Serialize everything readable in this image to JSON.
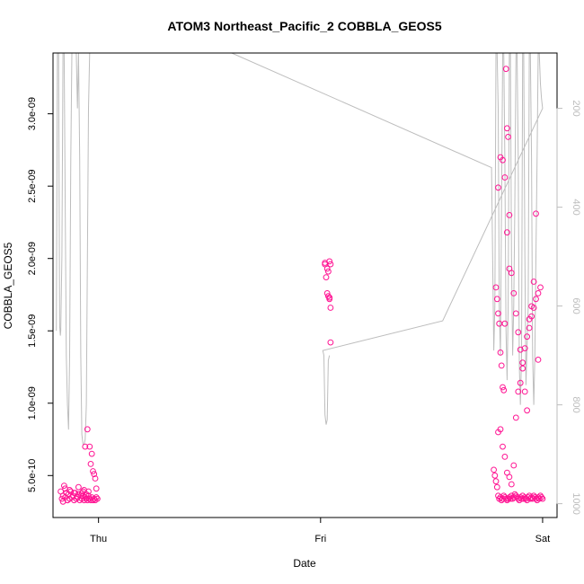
{
  "chart_data": {
    "type": "scatter",
    "title": "ATOM3 Northeast_Pacific_2 COBBLA_GEOS5",
    "xlabel": "Date",
    "ylabel": "COBBLA_GEOS5",
    "x_ticks": [
      {
        "label": "Thu",
        "value": 0.0
      },
      {
        "label": "Fri",
        "value": 1.0
      },
      {
        "label": "Sat",
        "value": 2.0
      }
    ],
    "xlim": [
      -0.205,
      2.065
    ],
    "ylim": [
      2.1e-10,
      3.42e-09
    ],
    "y_ticks": [
      {
        "label": "5.0e-10",
        "value": 5e-10
      },
      {
        "label": "1.0e-09",
        "value": 1e-09
      },
      {
        "label": "1.5e-09",
        "value": 1.5e-09
      },
      {
        "label": "2.0e-09",
        "value": 2e-09
      },
      {
        "label": "2.5e-09",
        "value": 2.5e-09
      },
      {
        "label": "3.0e-09",
        "value": 3e-09
      }
    ],
    "y2_ticks": [
      {
        "label": "200",
        "value": 200
      },
      {
        "label": "400",
        "value": 400
      },
      {
        "label": "600",
        "value": 600
      },
      {
        "label": "800",
        "value": 800
      },
      {
        "label": "1000",
        "value": 1000
      }
    ],
    "y2lim": [
      1028,
      88
    ],
    "y2_reversed": true,
    "colors": {
      "points": "#ff1493",
      "pressure_line": "#bdbdbd",
      "axis": "#000000",
      "axis_right": "#bdbdbd"
    },
    "series": [
      {
        "marker": "open-circle",
        "x": [
          -0.17,
          -0.165,
          -0.16,
          -0.155,
          -0.15,
          -0.145,
          -0.14,
          -0.135,
          -0.13,
          -0.125,
          -0.12,
          -0.115,
          -0.11,
          -0.105,
          -0.1,
          -0.095,
          -0.09,
          -0.085,
          -0.08,
          -0.075,
          -0.07,
          -0.065,
          -0.06,
          -0.055,
          -0.05,
          -0.045,
          -0.04,
          -0.035,
          -0.03,
          -0.025,
          -0.02,
          -0.015,
          -0.01,
          -0.005,
          -0.16,
          -0.15,
          -0.14,
          -0.13,
          -0.11,
          -0.09,
          -0.07,
          -0.06,
          -0.05,
          -0.04,
          -0.03,
          -0.02,
          -0.015,
          -0.035,
          -0.025,
          -0.01,
          -0.075,
          -0.065,
          -0.055,
          -0.045,
          1.02,
          1.025,
          1.03,
          1.035,
          1.04,
          1.045,
          1.02,
          1.03,
          1.035,
          1.04,
          1.045,
          1.04,
          1.045,
          1.78,
          1.785,
          1.79,
          1.795,
          1.8,
          1.805,
          1.81,
          1.815,
          1.82,
          1.825,
          1.83,
          1.835,
          1.84,
          1.845,
          1.85,
          1.855,
          1.86,
          1.865,
          1.87,
          1.875,
          1.88,
          1.885,
          1.89,
          1.895,
          1.9,
          1.905,
          1.91,
          1.915,
          1.92,
          1.925,
          1.93,
          1.935,
          1.94,
          1.945,
          1.95,
          1.955,
          1.96,
          1.965,
          1.97,
          1.975,
          1.98,
          1.985,
          1.99,
          1.995,
          2.0,
          1.8,
          1.81,
          1.82,
          1.83,
          1.84,
          1.85,
          1.86,
          1.87,
          1.88,
          1.89,
          1.9,
          1.91,
          1.92,
          1.93,
          1.94,
          1.95,
          1.96,
          1.97,
          1.98,
          1.99,
          1.8,
          1.81,
          1.82,
          1.83,
          1.84,
          1.85,
          1.79,
          1.795,
          1.8,
          1.805,
          1.81,
          1.815,
          1.82,
          1.825,
          1.83,
          1.835,
          1.84,
          1.845,
          1.85,
          1.86,
          1.87,
          1.88,
          1.89,
          1.9,
          1.91,
          1.92,
          1.93,
          1.94,
          1.95,
          1.96,
          1.97,
          1.98
        ],
        "y": [
          3.9e-10,
          3.4e-10,
          3.6e-10,
          4.3e-10,
          3.5e-10,
          3.8e-10,
          3.3e-10,
          3.7e-10,
          3.4e-10,
          3.9e-10,
          3.5e-10,
          3.6e-10,
          3.3e-10,
          3.8e-10,
          3.4e-10,
          3.5e-10,
          3.7e-10,
          3.3e-10,
          3.6e-10,
          3.4e-10,
          3.9e-10,
          3.3e-10,
          3.5e-10,
          3.4e-10,
          3.3e-10,
          3.6e-10,
          3.4e-10,
          3.3e-10,
          3.5e-10,
          3.3e-10,
          3.4e-10,
          3.3e-10,
          3.5e-10,
          3.4e-10,
          3.2e-10,
          4.1e-10,
          3.3e-10,
          4e-10,
          3.8e-10,
          4.2e-10,
          3.6e-10,
          7e-10,
          8.2e-10,
          7e-10,
          6.5e-10,
          5.1e-10,
          4.8e-10,
          5.8e-10,
          5.3e-10,
          4.1e-10,
          3.8e-10,
          4e-10,
          3.7e-10,
          3.9e-10,
          1.96e-09,
          1.87e-09,
          1.76e-09,
          1.74e-09,
          1.73e-09,
          1.66e-09,
          1.97e-09,
          1.93e-09,
          1.91e-09,
          1.72e-09,
          1.42e-09,
          1.98e-09,
          1.96e-09,
          5.4e-10,
          5e-10,
          4.6e-10,
          4.2e-10,
          3.6e-10,
          3.4e-10,
          3.5e-10,
          3.3e-10,
          3.4e-10,
          3.6e-10,
          3.5e-10,
          3.4e-10,
          3.3e-10,
          3.4e-10,
          3.5e-10,
          3.4e-10,
          3.6e-10,
          3.4e-10,
          3.5e-10,
          3.7e-10,
          3.6e-10,
          3.5e-10,
          3.4e-10,
          3.3e-10,
          3.5e-10,
          3.4e-10,
          3.6e-10,
          3.4e-10,
          3.5e-10,
          3.4e-10,
          3.3e-10,
          3.5e-10,
          3.6e-10,
          3.4e-10,
          3.5e-10,
          3.4e-10,
          3.6e-10,
          3.5e-10,
          3.4e-10,
          3.3e-10,
          3.5e-10,
          3.4e-10,
          3.6e-10,
          3.5e-10,
          3.4e-10,
          8e-10,
          8.2e-10,
          7e-10,
          6.3e-10,
          5.2e-10,
          4.9e-10,
          4.4e-10,
          5.7e-10,
          9e-10,
          1.08e-09,
          1.14e-09,
          1.28e-09,
          1.38e-09,
          1.46e-09,
          1.52e-09,
          1.6e-09,
          1.66e-09,
          1.72e-09,
          1.76e-09,
          1.8e-09,
          2.49e-09,
          2.7e-09,
          2.68e-09,
          2.56e-09,
          2.18e-09,
          1.93e-09,
          1.8e-09,
          1.72e-09,
          1.62e-09,
          1.55e-09,
          1.35e-09,
          1.26e-09,
          1.11e-09,
          1.09e-09,
          1.55e-09,
          3.31e-09,
          2.9e-09,
          2.84e-09,
          2.3e-09,
          1.9e-09,
          1.76e-09,
          1.62e-09,
          1.49e-09,
          1.37e-09,
          1.24e-09,
          1.08e-09,
          9.5e-10,
          1.58e-09,
          1.67e-09,
          1.84e-09,
          2.31e-09,
          1.3e-09
        ]
      }
    ],
    "pressure_line": {
      "x": [
        -0.19,
        -0.185,
        -0.18,
        -0.175,
        -0.172,
        -0.17,
        -0.165,
        -0.16,
        -0.155,
        -0.15,
        -0.145,
        -0.14,
        -0.135,
        -0.13,
        -0.125,
        -0.12,
        -0.115,
        -0.11,
        -0.105,
        -0.1,
        -0.095,
        -0.09,
        -0.085,
        -0.08,
        -0.075,
        -0.07,
        -0.065,
        -0.06,
        -0.055,
        -0.05,
        -0.045,
        -0.04,
        -0.035,
        -0.03,
        -0.025,
        -0.02,
        0.6,
        1.77,
        1.775,
        1.78,
        1.785,
        1.79,
        1.795,
        1.8,
        1.805,
        1.81,
        1.815,
        1.82,
        1.825,
        1.83,
        1.835,
        1.84,
        1.845,
        1.85,
        1.855,
        1.86,
        1.865,
        1.87,
        1.875,
        1.88,
        1.885,
        1.89,
        1.895,
        1.9,
        1.905,
        1.91,
        1.915,
        1.92,
        1.925,
        1.93,
        1.935,
        1.94,
        1.945,
        1.95,
        1.955,
        1.96,
        1.965,
        1.97,
        1.975,
        1.98,
        1.985,
        1.99,
        1.995,
        2.0,
        1.55,
        1.01,
        1.015,
        1.02,
        1.025,
        1.03,
        1.035,
        1.04
      ],
      "y": [
        650,
        88,
        88,
        640,
        660,
        650,
        500,
        88,
        88,
        400,
        700,
        800,
        850,
        700,
        300,
        88,
        88,
        88,
        88,
        88,
        200,
        88,
        300,
        700,
        860,
        880,
        880,
        870,
        800,
        500,
        200,
        88,
        88,
        88,
        88,
        88,
        88,
        320,
        500,
        690,
        600,
        88,
        88,
        200,
        600,
        700,
        400,
        88,
        88,
        300,
        650,
        750,
        600,
        88,
        88,
        500,
        700,
        600,
        400,
        88,
        88,
        300,
        720,
        800,
        700,
        88,
        88,
        500,
        760,
        680,
        600,
        88,
        88,
        300,
        700,
        800,
        700,
        500,
        300,
        88,
        88,
        150,
        180,
        200,
        630,
        690,
        700,
        820,
        840,
        830,
        710,
        700
      ]
    }
  }
}
